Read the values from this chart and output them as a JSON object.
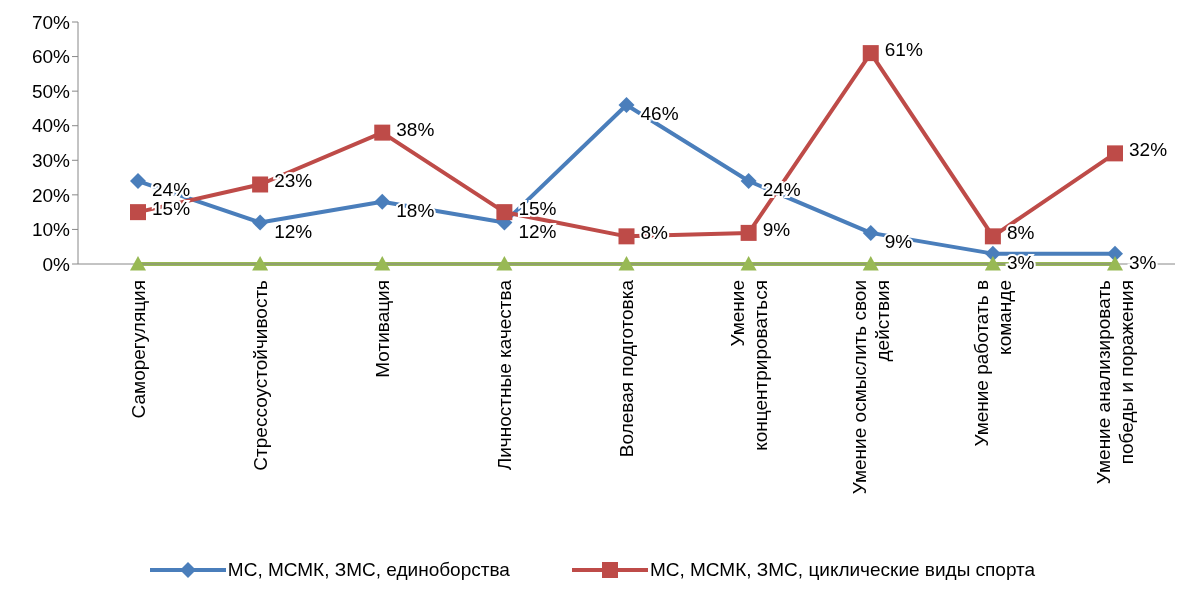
{
  "chart_data": {
    "type": "line",
    "categories": [
      "Саморегуляция",
      "Стрессоустойчивость",
      "Мотивация",
      "Личностные качества",
      "Волевая подготовка",
      "Умение концентрироваться",
      "Умение осмыслить свои действия",
      "Умение работать в команде",
      "Умение анализировать победы и поражения"
    ],
    "series": [
      {
        "name": "МС, МСМК, ЗМС, единоборства",
        "color": "#4a7ebb",
        "marker": "diamond",
        "values": [
          24,
          12,
          18,
          12,
          46,
          24,
          9,
          3,
          3
        ],
        "value_labels": [
          "24%",
          "12%",
          "18%",
          "12%",
          "46%",
          "24%",
          "9%",
          "3%",
          "3%"
        ]
      },
      {
        "name": "МС, МСМК, ЗМС, циклические виды спорта",
        "color": "#be4b48",
        "marker": "square",
        "values": [
          15,
          23,
          38,
          15,
          8,
          9,
          61,
          8,
          32
        ],
        "value_labels": [
          "15%",
          "23%",
          "38%",
          "15%",
          "8%",
          "9%",
          "61%",
          "8%",
          "32%"
        ]
      },
      {
        "color": "#98b954",
        "marker": "triangle",
        "values": [
          0,
          0,
          0,
          0,
          0,
          0,
          0,
          0,
          0
        ]
      }
    ],
    "ylim": [
      0,
      70
    ],
    "yticks": [
      {
        "value": 0,
        "label": "0%"
      },
      {
        "value": 10,
        "label": "10%"
      },
      {
        "value": 20,
        "label": "20%"
      },
      {
        "value": 30,
        "label": "30%"
      },
      {
        "value": 40,
        "label": "40%"
      },
      {
        "value": 50,
        "label": "50%"
      },
      {
        "value": 60,
        "label": "60%"
      },
      {
        "value": 70,
        "label": "70%"
      }
    ],
    "grid": false,
    "legend": "bottom",
    "line_style": "solid"
  }
}
